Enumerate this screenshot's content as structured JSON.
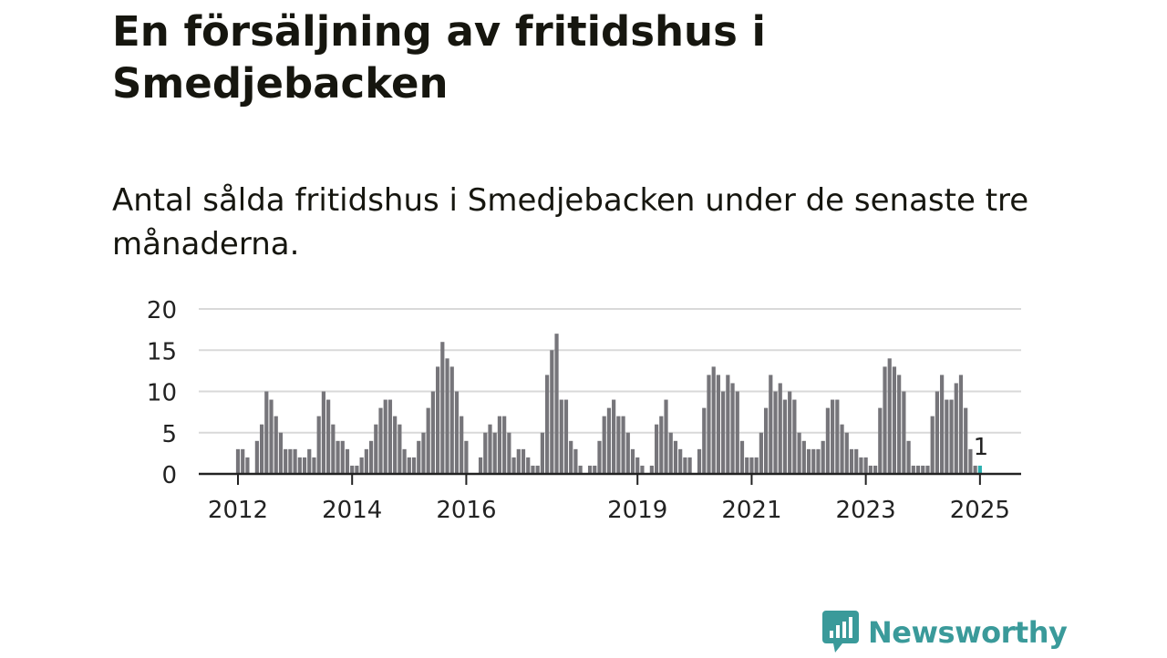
{
  "title": "En försäljning av fritidshus i Smedjebacken",
  "subtitle": "Antal sålda fritidshus i Smedjebacken under de senaste tre månaderna.",
  "brand": {
    "name": "Newsworthy",
    "icon": "newsworthy-logo-icon",
    "color": "#3a9a9a"
  },
  "colors": {
    "bar": "#76757a",
    "highlight": "#2bb0b0",
    "grid": "#d9d9d9",
    "axis": "#222222"
  },
  "chart_data": {
    "type": "bar",
    "title": "",
    "xlabel": "",
    "ylabel": "",
    "ylim": [
      0,
      20
    ],
    "yticks": [
      0,
      5,
      10,
      15,
      20
    ],
    "xtick_labels": [
      "2012",
      "2014",
      "2016",
      "2019",
      "2021",
      "2023",
      "2025"
    ],
    "grid": true,
    "start_month": "2012-01",
    "end_month": "2025-02",
    "highlight_label": "1",
    "values": [
      3,
      3,
      2,
      0,
      4,
      6,
      10,
      9,
      7,
      5,
      3,
      3,
      3,
      2,
      2,
      3,
      2,
      7,
      10,
      9,
      6,
      4,
      4,
      3,
      1,
      1,
      2,
      3,
      4,
      6,
      8,
      9,
      9,
      7,
      6,
      3,
      2,
      2,
      4,
      5,
      8,
      10,
      13,
      16,
      14,
      13,
      10,
      7,
      4,
      0,
      0,
      2,
      5,
      6,
      5,
      7,
      7,
      5,
      2,
      3,
      3,
      2,
      1,
      1,
      5,
      12,
      15,
      17,
      9,
      9,
      4,
      3,
      1,
      0,
      1,
      1,
      4,
      7,
      8,
      9,
      7,
      7,
      5,
      3,
      2,
      1,
      0,
      1,
      6,
      7,
      9,
      5,
      4,
      3,
      2,
      2,
      0,
      3,
      8,
      12,
      13,
      12,
      10,
      12,
      11,
      10,
      4,
      2,
      2,
      2,
      5,
      8,
      12,
      10,
      11,
      9,
      10,
      9,
      5,
      4,
      3,
      3,
      3,
      4,
      8,
      9,
      9,
      6,
      5,
      3,
      3,
      2,
      2,
      1,
      1,
      8,
      13,
      14,
      13,
      12,
      10,
      4,
      1,
      1,
      1,
      1,
      7,
      10,
      12,
      9,
      9,
      11,
      12,
      8,
      3,
      1,
      1
    ]
  }
}
